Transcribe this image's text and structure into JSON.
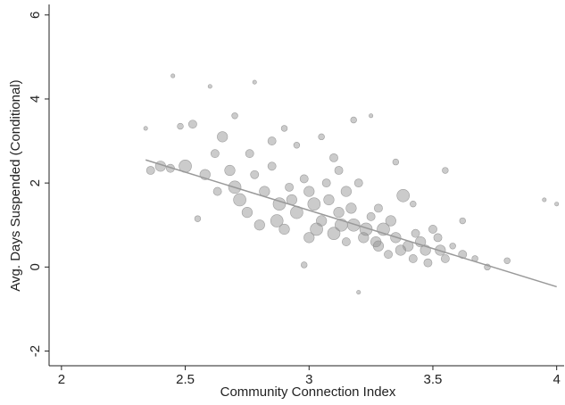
{
  "chart_data": {
    "type": "scatter",
    "x_label": "Community Connection Index",
    "y_label": "Avg. Days Suspended (Conditional)",
    "xlim": [
      1.95,
      4.03
    ],
    "ylim": [
      -2.35,
      6.25
    ],
    "xticks": [
      2,
      2.5,
      3,
      3.5,
      4
    ],
    "yticks": [
      -2,
      0,
      2,
      4,
      6
    ],
    "series": [
      {
        "color": "#8c8c8c",
        "x": [
          2.36,
          2.4,
          2.44,
          2.5,
          2.53,
          2.48,
          2.58,
          2.55,
          2.62,
          2.65,
          2.7,
          2.7,
          2.75,
          2.78,
          2.8,
          2.85,
          2.88,
          2.9,
          2.92,
          2.95,
          2.98,
          3.0,
          3.02,
          3.05,
          3.07,
          3.1,
          3.12,
          3.15,
          3.18,
          3.2,
          3.22,
          3.25,
          3.28,
          3.3,
          3.32,
          3.35,
          3.38,
          3.4,
          3.42,
          3.45,
          3.48,
          3.5,
          3.53,
          3.55,
          3.58,
          3.62,
          3.67,
          3.72,
          3.8,
          3.95,
          4.0,
          2.45,
          2.6,
          2.78,
          3.25,
          3.18,
          3.05,
          2.9,
          3.55,
          3.62,
          3.2,
          2.98,
          3.1,
          2.95,
          2.85,
          3.35,
          3.42,
          3.15,
          3.28,
          2.68,
          2.72,
          2.82,
          2.87,
          2.93,
          3.03,
          3.08,
          3.13,
          3.17,
          3.23,
          3.27,
          3.33,
          3.37,
          3.43,
          3.47,
          3.52,
          2.34,
          2.63,
          2.76,
          3.0,
          3.12
        ],
        "y": [
          2.3,
          2.4,
          2.35,
          2.4,
          3.4,
          3.35,
          2.2,
          1.15,
          2.7,
          3.1,
          1.9,
          3.6,
          1.3,
          2.2,
          1.0,
          2.4,
          1.5,
          0.9,
          1.9,
          1.3,
          2.1,
          0.7,
          1.5,
          1.1,
          2.0,
          0.8,
          1.3,
          0.6,
          1.0,
          2.0,
          0.7,
          1.2,
          0.5,
          0.9,
          0.3,
          0.7,
          1.7,
          0.5,
          0.2,
          0.6,
          0.1,
          0.9,
          0.4,
          0.2,
          0.5,
          0.3,
          0.2,
          0.0,
          0.15,
          1.6,
          1.5,
          4.55,
          4.3,
          4.4,
          3.6,
          3.5,
          3.1,
          3.3,
          2.3,
          1.1,
          -0.6,
          0.05,
          2.6,
          2.9,
          3.0,
          2.5,
          1.5,
          1.8,
          1.4,
          2.3,
          1.6,
          1.8,
          1.1,
          1.6,
          0.9,
          1.6,
          1.0,
          1.4,
          0.9,
          0.6,
          1.1,
          0.4,
          0.8,
          0.4,
          0.7,
          3.3,
          1.8,
          2.7,
          1.8,
          2.3
        ],
        "sizes": [
          3,
          4,
          3,
          5,
          3,
          2,
          4,
          2,
          3,
          4,
          5,
          2,
          4,
          3,
          4,
          3,
          5,
          4,
          3,
          5,
          3,
          4,
          5,
          4,
          3,
          5,
          4,
          3,
          5,
          3,
          4,
          3,
          4,
          5,
          3,
          4,
          5,
          4,
          3,
          4,
          3,
          3,
          4,
          3,
          2,
          3,
          2,
          2,
          2,
          1,
          1,
          1,
          1,
          1,
          1,
          2,
          2,
          2,
          2,
          2,
          1,
          2,
          3,
          2,
          3,
          2,
          2,
          4,
          3,
          4,
          5,
          4,
          5,
          4,
          5,
          4,
          5,
          4,
          5,
          4,
          4,
          4,
          3,
          4,
          3,
          1,
          3,
          3,
          4,
          3
        ]
      }
    ],
    "fit_line": {
      "color": "#999999",
      "x": [
        2.34,
        4.0
      ],
      "y": [
        2.55,
        -0.47
      ]
    }
  }
}
